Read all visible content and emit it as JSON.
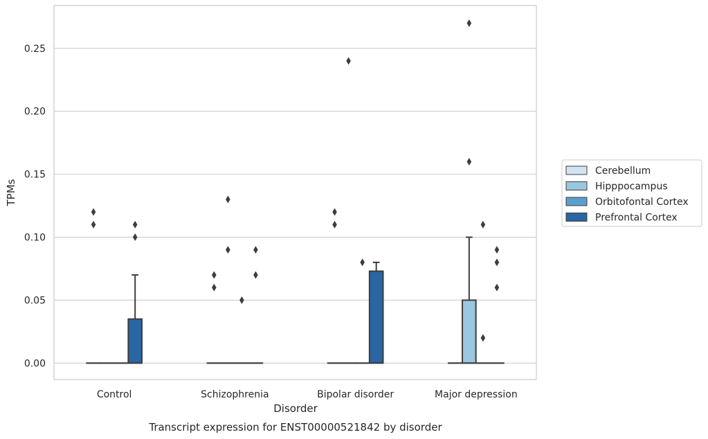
{
  "chart_data": {
    "type": "box",
    "title": "Transcript expression for ENST00000521842 by disorder",
    "xlabel": "Disorder",
    "ylabel": "TPMs",
    "ylim": [
      -0.013,
      0.284
    ],
    "yticks": [
      0.0,
      0.05,
      0.1,
      0.15,
      0.2,
      0.25
    ],
    "ytick_labels": [
      "0.00",
      "0.05",
      "0.10",
      "0.15",
      "0.20",
      "0.25"
    ],
    "grid": true,
    "legend_position": "right",
    "categories": [
      "Control",
      "Schizophrenia",
      "Bipolar disorder",
      "Major depression"
    ],
    "series": [
      {
        "name": "Cerebellum",
        "color": "#d3e3f3",
        "boxes": [
          {
            "min": 0,
            "q1": 0,
            "median": 0,
            "q3": 0,
            "max": 0,
            "outliers": [
              0.12,
              0.11
            ]
          },
          {
            "min": 0,
            "q1": 0,
            "median": 0,
            "q3": 0,
            "max": 0,
            "outliers": [
              0.07,
              0.06
            ]
          },
          {
            "min": 0,
            "q1": 0,
            "median": 0,
            "q3": 0,
            "max": 0,
            "outliers": [
              0.12,
              0.11
            ]
          },
          {
            "min": 0,
            "q1": 0,
            "median": 0,
            "q3": 0,
            "max": 0,
            "outliers": []
          }
        ]
      },
      {
        "name": "Hipppocampus",
        "color": "#9ac8e0",
        "boxes": [
          {
            "min": 0,
            "q1": 0,
            "median": 0,
            "q3": 0,
            "max": 0,
            "outliers": []
          },
          {
            "min": 0,
            "q1": 0,
            "median": 0,
            "q3": 0,
            "max": 0,
            "outliers": [
              0.13,
              0.09
            ]
          },
          {
            "min": 0,
            "q1": 0,
            "median": 0,
            "q3": 0,
            "max": 0,
            "outliers": [
              0.24
            ]
          },
          {
            "min": 0,
            "q1": 0,
            "median": 0,
            "q3": 0.05,
            "max": 0.1,
            "outliers": [
              0.27,
              0.16
            ]
          }
        ]
      },
      {
        "name": "Orbitofontal Cortex",
        "color": "#5a9ecc",
        "boxes": [
          {
            "min": 0,
            "q1": 0,
            "median": 0,
            "q3": 0,
            "max": 0,
            "outliers": []
          },
          {
            "min": 0,
            "q1": 0,
            "median": 0,
            "q3": 0,
            "max": 0,
            "outliers": [
              0.05
            ]
          },
          {
            "min": 0,
            "q1": 0,
            "median": 0,
            "q3": 0,
            "max": 0,
            "outliers": [
              0.08
            ]
          },
          {
            "min": 0,
            "q1": 0,
            "median": 0,
            "q3": 0,
            "max": 0,
            "outliers": [
              0.11,
              0.02
            ]
          }
        ]
      },
      {
        "name": "Prefrontal Cortex",
        "color": "#2a65a4",
        "boxes": [
          {
            "min": 0,
            "q1": 0,
            "median": 0,
            "q3": 0.035,
            "max": 0.07,
            "outliers": [
              0.11,
              0.1
            ]
          },
          {
            "min": 0,
            "q1": 0,
            "median": 0,
            "q3": 0,
            "max": 0,
            "outliers": [
              0.09,
              0.07
            ]
          },
          {
            "min": 0,
            "q1": 0,
            "median": 0,
            "q3": 0.073,
            "max": 0.08,
            "outliers": []
          },
          {
            "min": 0,
            "q1": 0,
            "median": 0,
            "q3": 0,
            "max": 0,
            "outliers": [
              0.09,
              0.08,
              0.06
            ]
          }
        ]
      }
    ]
  }
}
